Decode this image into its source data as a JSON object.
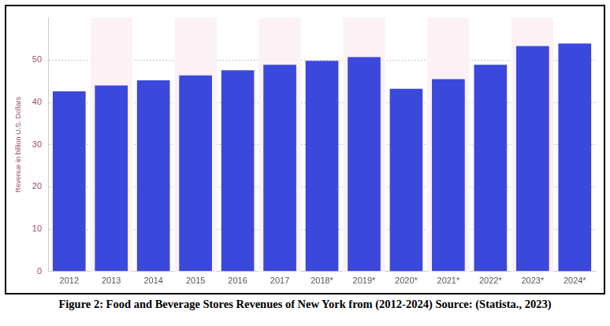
{
  "chart_data": {
    "type": "bar",
    "title": "Figure 2:  Food and Beverage Stores Revenues of New York from (2012-2024) Source: (Statista., 2023)",
    "y_label": "Revenue in billion U.S. Dollars",
    "categories": [
      "2012",
      "2013",
      "2014",
      "2015",
      "2016",
      "2017",
      "2018*",
      "2019*",
      "2020*",
      "2021*",
      "2022*",
      "2023*",
      "2024*"
    ],
    "values": [
      42.6,
      44.0,
      45.2,
      46.4,
      47.6,
      48.9,
      49.8,
      50.7,
      43.2,
      45.5,
      48.9,
      53.3,
      53.9
    ],
    "color": "#3b48dc",
    "ylim": [
      0,
      60
    ],
    "yticks": [
      0,
      10,
      20,
      30,
      40,
      50
    ],
    "grid": true
  }
}
